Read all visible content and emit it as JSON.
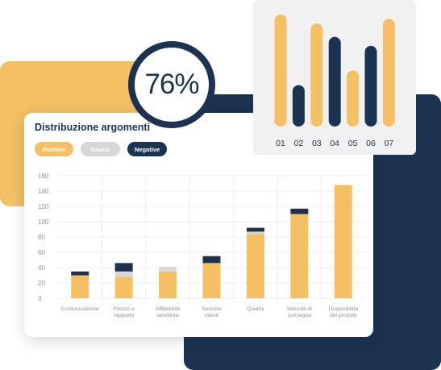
{
  "main_card": {
    "title": "Distribuzione argomenti",
    "legend": {
      "positive": "Positive",
      "neutral": "Neutre",
      "negative": "Negative"
    }
  },
  "badge": {
    "value": "76%"
  },
  "colors": {
    "positive": "#f4c063",
    "neutral": "#d7d7d7",
    "negative": "#1b3251",
    "grid": "#ececec",
    "axis_text": "#8a8f98"
  },
  "chart_data": [
    {
      "type": "bar",
      "stacked": true,
      "categories": [
        [
          "Comunicazione"
        ],
        [
          "Prezzo e",
          "rapporto"
        ],
        [
          "Affidabilità",
          "venditore"
        ],
        [
          "Servizio",
          "clienti"
        ],
        [
          "Qualità"
        ],
        [
          "Velocità di",
          "consegna"
        ],
        [
          "Disponibilità",
          "dei prodotti"
        ]
      ],
      "series": [
        {
          "name": "Positive",
          "values": [
            30,
            28,
            35,
            46,
            84,
            110,
            148
          ]
        },
        {
          "name": "Neutre",
          "values": [
            0,
            7,
            6,
            0,
            3,
            0,
            0
          ]
        },
        {
          "name": "Negative",
          "values": [
            5,
            11,
            0,
            9,
            5,
            7,
            0
          ]
        }
      ],
      "ylim": [
        0,
        160
      ],
      "yticks": [
        0,
        20,
        40,
        60,
        80,
        100,
        120,
        140,
        160
      ],
      "grid": true
    },
    {
      "type": "bar",
      "categories": [
        "01",
        "02",
        "03",
        "04",
        "05",
        "06",
        "07"
      ],
      "values": [
        100,
        37,
        92,
        80,
        50,
        72,
        96
      ],
      "bar_colors": [
        "#f4c063",
        "#1b3251",
        "#f4c063",
        "#1b3251",
        "#f4c063",
        "#1b3251",
        "#f4c063"
      ],
      "ylim": [
        0,
        100
      ],
      "grid": false
    }
  ]
}
